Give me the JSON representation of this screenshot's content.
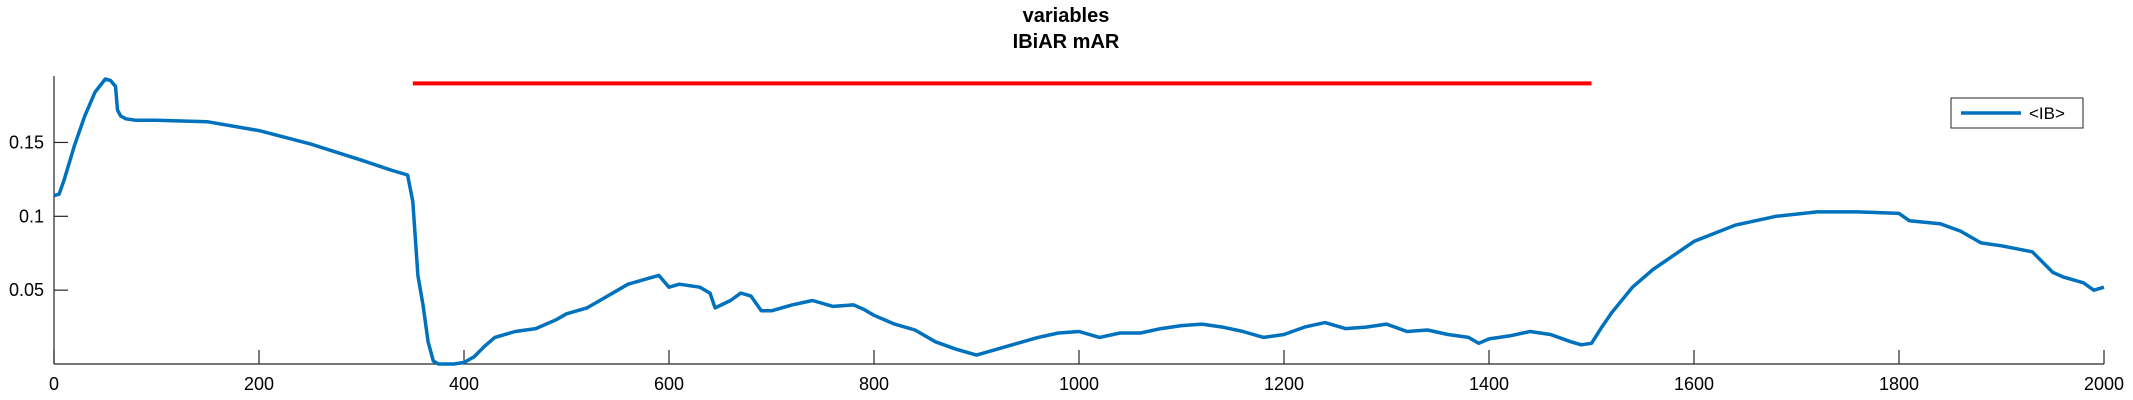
{
  "chart_data": {
    "type": "line",
    "title": [
      "variables",
      "IBiAR mAR"
    ],
    "xlabel": "",
    "ylabel": "",
    "xlim": [
      0,
      2000
    ],
    "ylim": [
      0,
      0.195
    ],
    "xticks": [
      0,
      200,
      400,
      600,
      800,
      1000,
      1200,
      1400,
      1600,
      1800,
      2000
    ],
    "xtick_labels": [
      "0",
      "200",
      "400",
      "600",
      "800",
      "1000",
      "1200",
      "1400",
      "1600",
      "1800",
      "2000"
    ],
    "yticks": [
      0.05,
      0.1,
      0.15
    ],
    "ytick_labels": [
      "0.05",
      "0.1",
      "0.15"
    ],
    "grid": false,
    "legend": {
      "position": "top-right",
      "entries": [
        "<IB>"
      ]
    },
    "series": [
      {
        "name": "<IB>",
        "color": "#0072BD",
        "x": [
          0,
          5,
          10,
          20,
          30,
          40,
          50,
          55,
          60,
          62,
          65,
          70,
          80,
          100,
          150,
          200,
          250,
          300,
          330,
          340,
          345,
          350,
          355,
          360,
          365,
          370,
          375,
          380,
          390,
          400,
          410,
          420,
          430,
          450,
          470,
          490,
          500,
          520,
          540,
          560,
          580,
          590,
          600,
          610,
          630,
          640,
          645,
          660,
          670,
          680,
          690,
          700,
          720,
          740,
          760,
          780,
          790,
          800,
          820,
          840,
          860,
          880,
          900,
          920,
          940,
          960,
          980,
          1000,
          1020,
          1040,
          1060,
          1080,
          1100,
          1120,
          1140,
          1160,
          1180,
          1200,
          1220,
          1240,
          1260,
          1280,
          1300,
          1320,
          1340,
          1360,
          1380,
          1390,
          1400,
          1420,
          1440,
          1460,
          1480,
          1490,
          1500,
          1510,
          1520,
          1540,
          1560,
          1600,
          1640,
          1680,
          1720,
          1760,
          1800,
          1810,
          1840,
          1860,
          1880,
          1900,
          1930,
          1950,
          1960,
          1980,
          1990,
          2000
        ],
        "y": [
          0.114,
          0.115,
          0.125,
          0.148,
          0.168,
          0.184,
          0.193,
          0.192,
          0.188,
          0.172,
          0.168,
          0.166,
          0.165,
          0.165,
          0.164,
          0.158,
          0.149,
          0.138,
          0.131,
          0.129,
          0.128,
          0.11,
          0.06,
          0.04,
          0.015,
          0.002,
          0.0,
          0.0,
          0.0,
          0.001,
          0.005,
          0.012,
          0.018,
          0.022,
          0.024,
          0.03,
          0.034,
          0.038,
          0.046,
          0.054,
          0.058,
          0.06,
          0.052,
          0.054,
          0.052,
          0.048,
          0.038,
          0.043,
          0.048,
          0.046,
          0.036,
          0.036,
          0.04,
          0.043,
          0.039,
          0.04,
          0.037,
          0.033,
          0.027,
          0.023,
          0.015,
          0.01,
          0.006,
          0.01,
          0.014,
          0.018,
          0.021,
          0.022,
          0.018,
          0.021,
          0.021,
          0.024,
          0.026,
          0.027,
          0.025,
          0.022,
          0.018,
          0.02,
          0.025,
          0.028,
          0.024,
          0.025,
          0.027,
          0.022,
          0.023,
          0.02,
          0.018,
          0.014,
          0.017,
          0.019,
          0.022,
          0.02,
          0.015,
          0.013,
          0.014,
          0.025,
          0.035,
          0.052,
          0.064,
          0.083,
          0.094,
          0.1,
          0.103,
          0.103,
          0.102,
          0.097,
          0.095,
          0.09,
          0.082,
          0.08,
          0.076,
          0.062,
          0.059,
          0.055,
          0.05,
          0.052
        ]
      },
      {
        "name": "",
        "color": "#FF0000",
        "x": [
          350,
          1500
        ],
        "y": [
          0.19,
          0.19
        ]
      }
    ]
  }
}
